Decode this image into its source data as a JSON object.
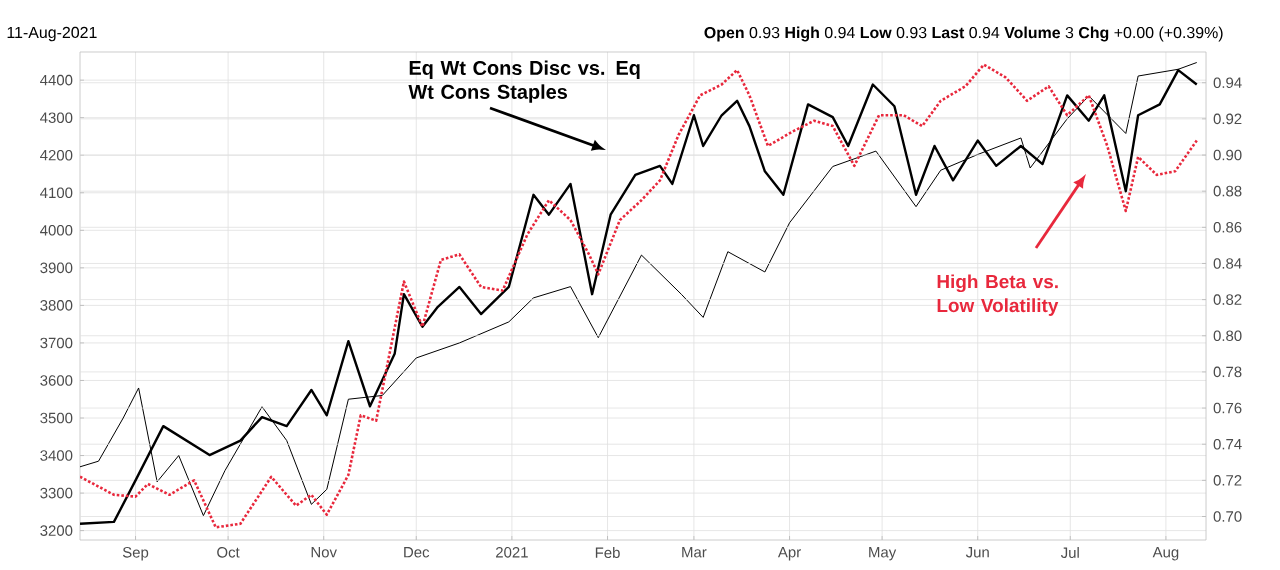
{
  "chart_data": {
    "type": "line",
    "annotations": [
      "11-Aug-2021",
      "**Open** 0.93 **High** 0.94 **Low** 0.93 **Last** 0.94 **Volume** 3 **Chg** +0.00 (+0.39%)"
    ],
    "xlim": [
      "2020-08-14",
      "2021-08-14"
    ],
    "xticks": [
      {
        "value": "2020-09-01",
        "label": "Sep"
      },
      {
        "value": "2020-10-01",
        "label": "Oct"
      },
      {
        "value": "2020-11-01",
        "label": "Nov"
      },
      {
        "value": "2020-12-01",
        "label": "Dec"
      },
      {
        "value": "2021-01-01",
        "label": "2021"
      },
      {
        "value": "2021-02-01",
        "label": "Feb"
      },
      {
        "value": "2021-03-01",
        "label": "Mar"
      },
      {
        "value": "2021-04-01",
        "label": "Apr"
      },
      {
        "value": "2021-05-01",
        "label": "May"
      },
      {
        "value": "2021-06-01",
        "label": "Jun"
      },
      {
        "value": "2021-07-01",
        "label": "Jul"
      },
      {
        "value": "2021-08-01",
        "label": "Aug"
      }
    ],
    "ylim": [
      3175,
      4475
    ],
    "yticks": [
      3200,
      3300,
      3400,
      3500,
      3600,
      3700,
      3800,
      3900,
      4000,
      4100,
      4200,
      4300,
      4400
    ],
    "y2lim": [
      0.687,
      0.957
    ],
    "y2ticks": [
      {
        "value": 0.7,
        "label": "0.70"
      },
      {
        "value": 0.72,
        "label": "0.72"
      },
      {
        "value": 0.74,
        "label": "0.74"
      },
      {
        "value": 0.76,
        "label": "0.76"
      },
      {
        "value": 0.78,
        "label": "0.78"
      },
      {
        "value": 0.8,
        "label": "0.80"
      },
      {
        "value": 0.82,
        "label": "0.82"
      },
      {
        "value": 0.84,
        "label": "0.84"
      },
      {
        "value": 0.86,
        "label": "0.86"
      },
      {
        "value": 0.88,
        "label": "0.88"
      },
      {
        "value": 0.9,
        "label": "0.90"
      },
      {
        "value": 0.92,
        "label": "0.92"
      },
      {
        "value": 0.94,
        "label": "0.94"
      }
    ],
    "grid": true,
    "marker": "none",
    "series": [
      {
        "color": "#000000",
        "line_style": "solid",
        "axis": "y",
        "x": [
          "2020-08-14",
          "2020-08-20",
          "2020-08-28",
          "2020-09-02",
          "2020-09-08",
          "2020-09-15",
          "2020-09-23",
          "2020-09-30",
          "2020-10-12",
          "2020-10-20",
          "2020-10-28",
          "2020-11-02",
          "2020-11-09",
          "2020-11-20",
          "2020-12-01",
          "2020-12-15",
          "2020-12-31",
          "2021-01-08",
          "2021-01-20",
          "2021-01-29",
          "2021-02-12",
          "2021-02-25",
          "2021-03-04",
          "2021-03-12",
          "2021-03-24",
          "2021-04-01",
          "2021-04-15",
          "2021-04-29",
          "2021-05-12",
          "2021-05-20",
          "2021-06-01",
          "2021-06-15",
          "2021-06-18",
          "2021-06-30",
          "2021-07-07",
          "2021-07-19",
          "2021-07-23",
          "2021-08-05",
          "2021-08-11"
        ],
        "values": [
          3370,
          3385,
          3500,
          3580,
          3330,
          3400,
          3240,
          3360,
          3530,
          3440,
          3270,
          3310,
          3550,
          3560,
          3660,
          3700,
          3756,
          3820,
          3850,
          3714,
          3934,
          3829,
          3768,
          3943,
          3889,
          4020,
          4170,
          4211,
          4063,
          4160,
          4202,
          4246,
          4166,
          4297,
          4358,
          4258,
          4411,
          4429,
          4447
        ]
      },
      {
        "name": "Eq Wt Cons Disc vs. Eq Wt Cons Staples",
        "color": "#000000",
        "line_style": "solid",
        "axis": "y2",
        "x": [
          "2020-08-14",
          "2020-08-25",
          "2020-09-01",
          "2020-09-10",
          "2020-09-25",
          "2020-10-05",
          "2020-10-12",
          "2020-10-20",
          "2020-10-28",
          "2020-11-02",
          "2020-11-09",
          "2020-11-16",
          "2020-11-24",
          "2020-11-27",
          "2020-12-03",
          "2020-12-08",
          "2020-12-15",
          "2020-12-22",
          "2020-12-31",
          "2021-01-08",
          "2021-01-13",
          "2021-01-20",
          "2021-01-27",
          "2021-02-02",
          "2021-02-10",
          "2021-02-18",
          "2021-02-22",
          "2021-03-01",
          "2021-03-04",
          "2021-03-10",
          "2021-03-15",
          "2021-03-19",
          "2021-03-24",
          "2021-03-30",
          "2021-04-07",
          "2021-04-15",
          "2021-04-20",
          "2021-04-28",
          "2021-05-05",
          "2021-05-12",
          "2021-05-18",
          "2021-05-24",
          "2021-06-01",
          "2021-06-07",
          "2021-06-15",
          "2021-06-22",
          "2021-06-30",
          "2021-07-07",
          "2021-07-12",
          "2021-07-19",
          "2021-07-23",
          "2021-07-30",
          "2021-08-05",
          "2021-08-11"
        ],
        "values": [
          0.696,
          0.697,
          0.72,
          0.75,
          0.734,
          0.742,
          0.755,
          0.75,
          0.77,
          0.756,
          0.797,
          0.761,
          0.79,
          0.823,
          0.805,
          0.816,
          0.827,
          0.812,
          0.827,
          0.878,
          0.867,
          0.884,
          0.823,
          0.867,
          0.889,
          0.894,
          0.884,
          0.922,
          0.905,
          0.922,
          0.93,
          0.916,
          0.891,
          0.878,
          0.928,
          0.921,
          0.905,
          0.939,
          0.927,
          0.878,
          0.905,
          0.886,
          0.908,
          0.894,
          0.905,
          0.895,
          0.933,
          0.919,
          0.933,
          0.88,
          0.922,
          0.928,
          0.947,
          0.939
        ]
      },
      {
        "name": "High Beta vs. Low Volatility",
        "color": "#e8283c",
        "line_style": "dotted",
        "axis": "y2",
        "x": [
          "2020-08-14",
          "2020-08-25",
          "2020-09-01",
          "2020-09-05",
          "2020-09-12",
          "2020-09-20",
          "2020-09-27",
          "2020-10-05",
          "2020-10-15",
          "2020-10-23",
          "2020-10-28",
          "2020-11-02",
          "2020-11-09",
          "2020-11-13",
          "2020-11-18",
          "2020-11-27",
          "2020-12-03",
          "2020-12-09",
          "2020-12-15",
          "2020-12-22",
          "2020-12-29",
          "2021-01-06",
          "2021-01-13",
          "2021-01-20",
          "2021-01-26",
          "2021-01-29",
          "2021-02-05",
          "2021-02-12",
          "2021-02-18",
          "2021-02-24",
          "2021-03-03",
          "2021-03-10",
          "2021-03-15",
          "2021-03-19",
          "2021-03-25",
          "2021-04-02",
          "2021-04-09",
          "2021-04-15",
          "2021-04-22",
          "2021-04-30",
          "2021-05-08",
          "2021-05-14",
          "2021-05-20",
          "2021-05-28",
          "2021-06-03",
          "2021-06-10",
          "2021-06-17",
          "2021-06-24",
          "2021-06-30",
          "2021-07-07",
          "2021-07-13",
          "2021-07-19",
          "2021-07-23",
          "2021-07-29",
          "2021-08-04",
          "2021-08-11"
        ],
        "values": [
          0.722,
          0.712,
          0.711,
          0.718,
          0.712,
          0.72,
          0.694,
          0.696,
          0.722,
          0.706,
          0.712,
          0.701,
          0.723,
          0.756,
          0.753,
          0.83,
          0.805,
          0.842,
          0.845,
          0.827,
          0.825,
          0.856,
          0.875,
          0.864,
          0.845,
          0.834,
          0.864,
          0.875,
          0.886,
          0.911,
          0.933,
          0.939,
          0.947,
          0.933,
          0.905,
          0.913,
          0.919,
          0.916,
          0.894,
          0.922,
          0.922,
          0.916,
          0.93,
          0.938,
          0.95,
          0.943,
          0.93,
          0.938,
          0.922,
          0.933,
          0.905,
          0.869,
          0.899,
          0.889,
          0.891,
          0.908
        ]
      }
    ]
  }
}
